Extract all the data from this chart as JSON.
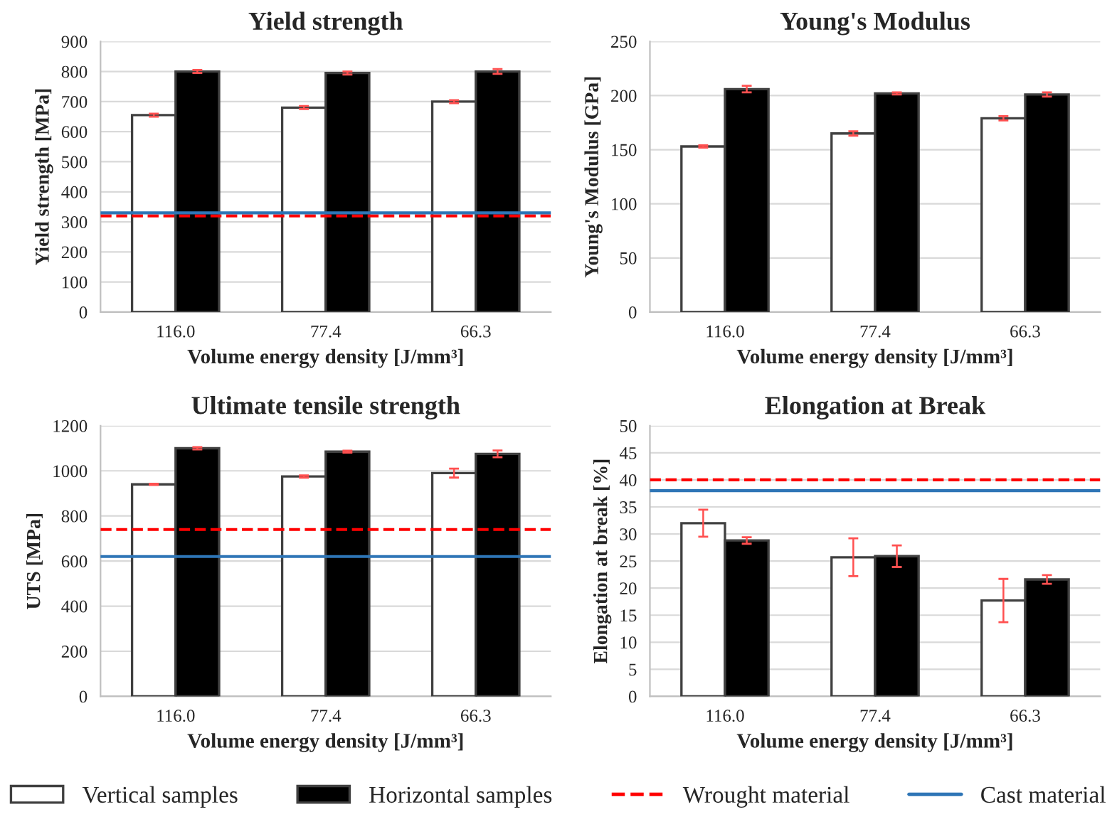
{
  "chart_data": [
    {
      "type": "bar",
      "title": "Yield strength",
      "xlabel": "Volume energy density [J/mm³]",
      "ylabel": "Yield strength [MPa]",
      "categories": [
        "116.0",
        "77.4",
        "66.3"
      ],
      "series": [
        {
          "name": "Vertical samples",
          "color": "#ffffff",
          "values": [
            655,
            680,
            700
          ],
          "errors": [
            5,
            5,
            5
          ]
        },
        {
          "name": "Horizontal samples",
          "color": "#000000",
          "values": [
            800,
            795,
            800
          ],
          "errors": [
            5,
            5,
            8
          ]
        }
      ],
      "ylim": [
        0,
        900
      ],
      "yticks": [
        0,
        100,
        200,
        300,
        400,
        500,
        600,
        700,
        800,
        900
      ],
      "grid": "y",
      "ref_lines": [
        {
          "axis": "y",
          "value": 320,
          "label": "Wrought material",
          "color": "#ff0000",
          "line_style": "dashed"
        },
        {
          "axis": "y",
          "value": 330,
          "label": "Cast material",
          "color": "#2e75b6",
          "line_style": "solid"
        }
      ],
      "legend": "bottom"
    },
    {
      "type": "bar",
      "title": "Young's Modulus",
      "xlabel": "Volume energy density [J/mm³]",
      "ylabel": "Young's Modulus [GPa]",
      "categories": [
        "116.0",
        "77.4",
        "66.3"
      ],
      "series": [
        {
          "color": "#ffffff",
          "values": [
            153,
            165,
            179
          ],
          "errors": [
            1,
            2,
            2
          ]
        },
        {
          "color": "#000000",
          "values": [
            206,
            202,
            201
          ],
          "errors": [
            3,
            1,
            2
          ]
        }
      ],
      "ylim": [
        0,
        250
      ],
      "yticks": [
        0,
        50,
        100,
        150,
        200,
        250
      ],
      "grid": "y"
    },
    {
      "type": "bar",
      "title": "Ultimate tensile strength",
      "xlabel": "Volume energy density [J/mm³]",
      "ylabel": "UTS [MPa]",
      "categories": [
        "116.0",
        "77.4",
        "66.3"
      ],
      "series": [
        {
          "color": "#ffffff",
          "values": [
            940,
            975,
            990
          ],
          "errors": [
            3,
            5,
            20
          ]
        },
        {
          "color": "#000000",
          "values": [
            1100,
            1085,
            1075
          ],
          "errors": [
            5,
            4,
            15
          ]
        }
      ],
      "ylim": [
        0,
        1200
      ],
      "yticks": [
        0,
        200,
        400,
        600,
        800,
        1000,
        1200
      ],
      "grid": "y",
      "ref_lines": [
        {
          "axis": "y",
          "value": 740,
          "color": "#ff0000",
          "line_style": "dashed"
        },
        {
          "axis": "y",
          "value": 620,
          "color": "#2e75b6",
          "line_style": "solid"
        }
      ]
    },
    {
      "type": "bar",
      "title": "Elongation at Break",
      "xlabel": "Volume energy density [J/mm³]",
      "ylabel": "Elongation at break [%]",
      "categories": [
        "116.0",
        "77.4",
        "66.3"
      ],
      "series": [
        {
          "color": "#ffffff",
          "values": [
            32,
            25.7,
            17.7
          ],
          "errors": [
            2.5,
            3.5,
            4
          ]
        },
        {
          "color": "#000000",
          "values": [
            28.8,
            25.9,
            21.6
          ],
          "errors": [
            0.6,
            2,
            0.8
          ]
        }
      ],
      "ylim": [
        0,
        50
      ],
      "yticks": [
        0,
        5,
        10,
        15,
        20,
        25,
        30,
        35,
        40,
        45,
        50
      ],
      "grid": "y",
      "ref_lines": [
        {
          "axis": "y",
          "value": 40,
          "color": "#ff0000",
          "line_style": "dashed"
        },
        {
          "axis": "y",
          "value": 38,
          "color": "#2e75b6",
          "line_style": "solid"
        }
      ]
    }
  ]
}
